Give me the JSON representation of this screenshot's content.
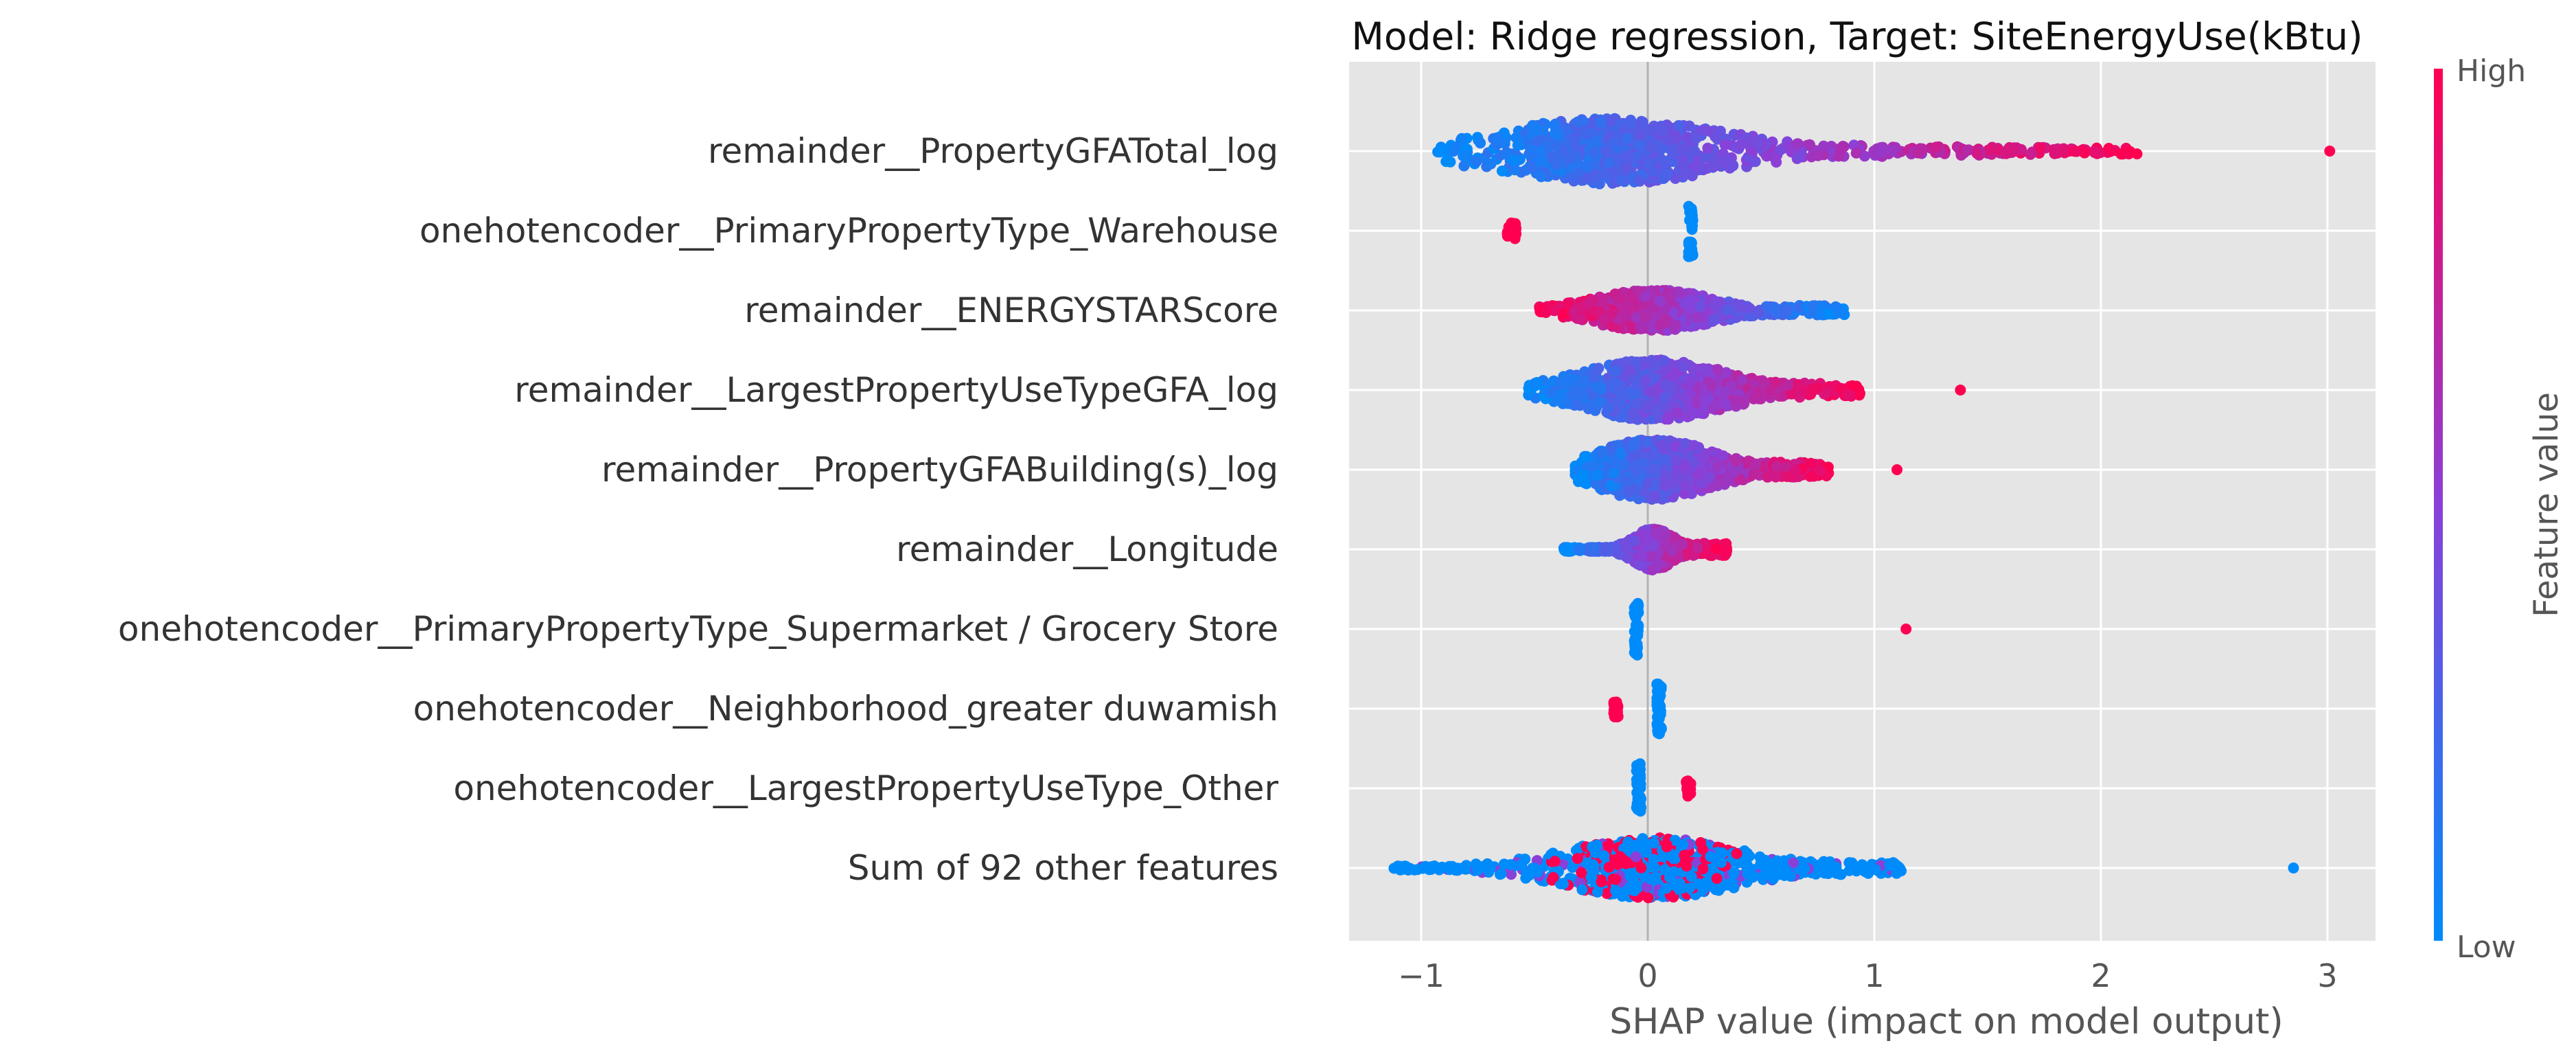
{
  "chart_data": {
    "type": "scatter",
    "subtype": "shap-beeswarm",
    "title": "Model: Ridge regression, Target: SiteEnergyUse(kBtu)",
    "xlabel": "SHAP value (impact on model output)",
    "xlim": [
      -1.35,
      3.22
    ],
    "xticks": [
      {
        "value": -1,
        "label": "−1"
      },
      {
        "value": 0,
        "label": "0"
      },
      {
        "value": 1,
        "label": "1"
      },
      {
        "value": 2,
        "label": "2"
      },
      {
        "value": 3,
        "label": "3"
      }
    ],
    "grid": true,
    "colorbar": {
      "label": "Feature value",
      "high_label": "High",
      "low_label": "Low",
      "low_color": "#008bfb",
      "high_color": "#ff0051"
    },
    "features": [
      {
        "name": "remainder__PropertyGFATotal_log",
        "min": -0.93,
        "max": 2.17,
        "core_lo": -0.6,
        "core_hi": 0.25,
        "spread": "long",
        "outliers": [
          3.01
        ],
        "color_mode": "increasing"
      },
      {
        "name": "onehotencoder__PrimaryPropertyType_Warehouse",
        "clusters": [
          {
            "x": -0.6,
            "color": "high",
            "spread": 0.02
          },
          {
            "x": 0.19,
            "color": "low",
            "spread": 0.01
          }
        ]
      },
      {
        "name": "remainder__ENERGYSTARScore",
        "min": -0.48,
        "max": 0.87,
        "core_lo": -0.2,
        "core_hi": 0.25,
        "spread": "narrow",
        "outliers": [],
        "color_mode": "decreasing"
      },
      {
        "name": "remainder__LargestPropertyUseTypeGFA_log",
        "min": -0.53,
        "max": 0.94,
        "core_lo": -0.25,
        "core_hi": 0.3,
        "spread": "wide",
        "outliers": [
          1.38
        ],
        "color_mode": "increasing"
      },
      {
        "name": "remainder__PropertyGFABuilding(s)_log",
        "min": -0.32,
        "max": 0.8,
        "core_lo": -0.2,
        "core_hi": 0.25,
        "spread": "wide",
        "outliers": [
          1.1
        ],
        "color_mode": "increasing"
      },
      {
        "name": "remainder__Longitude",
        "min": -0.37,
        "max": 0.35,
        "core_lo": -0.05,
        "core_hi": 0.1,
        "spread": "narrow",
        "outliers": [],
        "color_mode": "increasing"
      },
      {
        "name": "onehotencoder__PrimaryPropertyType_Supermarket / Grocery Store",
        "clusters": [
          {
            "x": -0.05,
            "color": "low",
            "spread": 0.01
          }
        ],
        "outliers_high": [
          1.14
        ]
      },
      {
        "name": "onehotencoder__Neighborhood_greater duwamish",
        "clusters": [
          {
            "x": 0.05,
            "color": "low",
            "spread": 0.01
          },
          {
            "x": -0.14,
            "color": "high",
            "spread": 0.01
          }
        ]
      },
      {
        "name": "onehotencoder__LargestPropertyUseType_Other",
        "clusters": [
          {
            "x": -0.04,
            "color": "low",
            "spread": 0.01
          },
          {
            "x": 0.18,
            "color": "high",
            "spread": 0.01
          }
        ]
      },
      {
        "name": "Sum of 92 other features",
        "min": -1.13,
        "max": 1.12,
        "core_lo": -0.3,
        "core_hi": 0.35,
        "spread": "wide",
        "outliers": [
          2.85
        ],
        "color_mode": "mixed"
      }
    ]
  }
}
